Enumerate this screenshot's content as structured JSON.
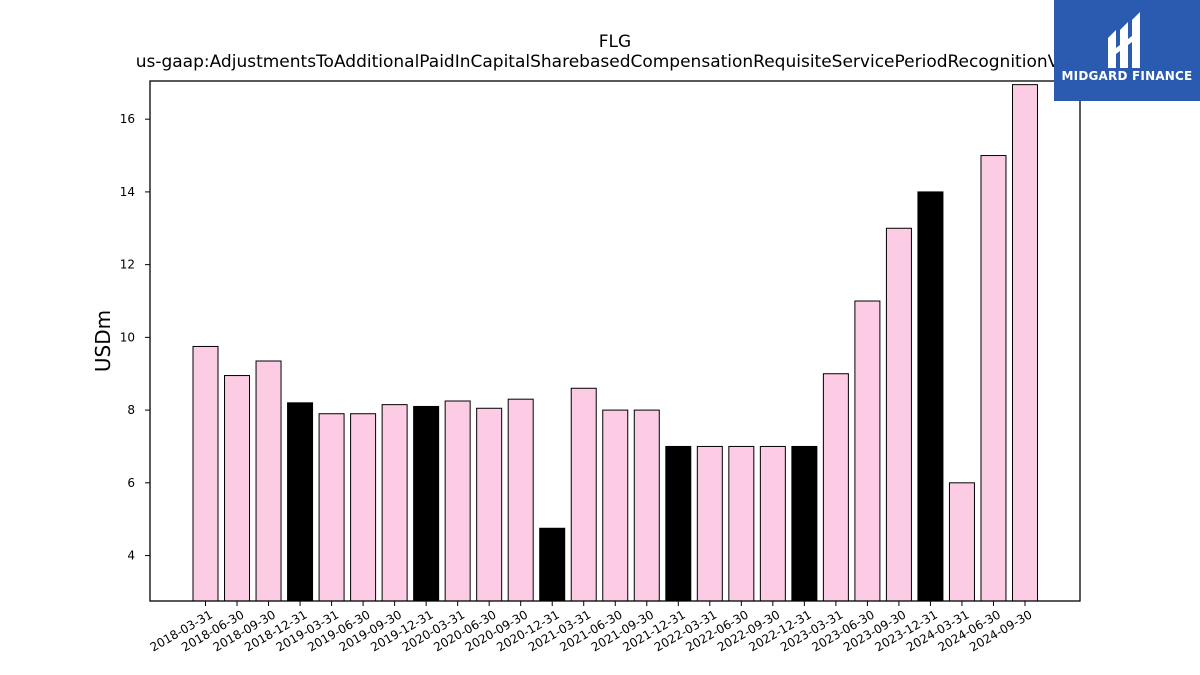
{
  "chart_data": {
    "type": "bar",
    "title": "FLG",
    "subtitle": "us-gaap:AdjustmentsToAdditionalPaidInCapitalSharebasedCompensationRequisiteServicePeriodRecognitionValue",
    "xlabel": "",
    "ylabel": "USDm",
    "ylim": [
      2.75,
      17.05
    ],
    "yticks": [
      4,
      6,
      8,
      10,
      12,
      14,
      16
    ],
    "grid": false,
    "categories": [
      "2018-03-31",
      "2018-06-30",
      "2018-09-30",
      "2018-12-31",
      "2019-03-31",
      "2019-06-30",
      "2019-09-30",
      "2019-12-31",
      "2020-03-31",
      "2020-06-30",
      "2020-09-30",
      "2020-12-31",
      "2021-03-31",
      "2021-06-30",
      "2021-09-30",
      "2021-12-31",
      "2022-03-31",
      "2022-06-30",
      "2022-09-30",
      "2022-12-31",
      "2023-03-31",
      "2023-06-30",
      "2023-09-30",
      "2023-12-31",
      "2024-03-31",
      "2024-06-30",
      "2024-09-30"
    ],
    "values": [
      9.75,
      8.95,
      9.35,
      8.2,
      7.9,
      7.9,
      8.15,
      8.1,
      8.25,
      8.05,
      8.3,
      4.75,
      8.6,
      8.0,
      8.0,
      7.0,
      7.0,
      7.0,
      7.0,
      7.0,
      9.0,
      11.0,
      13.0,
      14.0,
      6.0,
      15.0,
      16.95
    ],
    "bar_colors": [
      "#fccce4",
      "#fccce4",
      "#fccce4",
      "#000000",
      "#fccce4",
      "#fccce4",
      "#fccce4",
      "#000000",
      "#fccce4",
      "#fccce4",
      "#fccce4",
      "#000000",
      "#fccce4",
      "#fccce4",
      "#fccce4",
      "#000000",
      "#fccce4",
      "#fccce4",
      "#fccce4",
      "#000000",
      "#fccce4",
      "#fccce4",
      "#fccce4",
      "#000000",
      "#fccce4",
      "#fccce4",
      "#fccce4"
    ]
  },
  "logo": {
    "text": "MIDGARD FINANCE",
    "background": "#2b5bb0"
  }
}
